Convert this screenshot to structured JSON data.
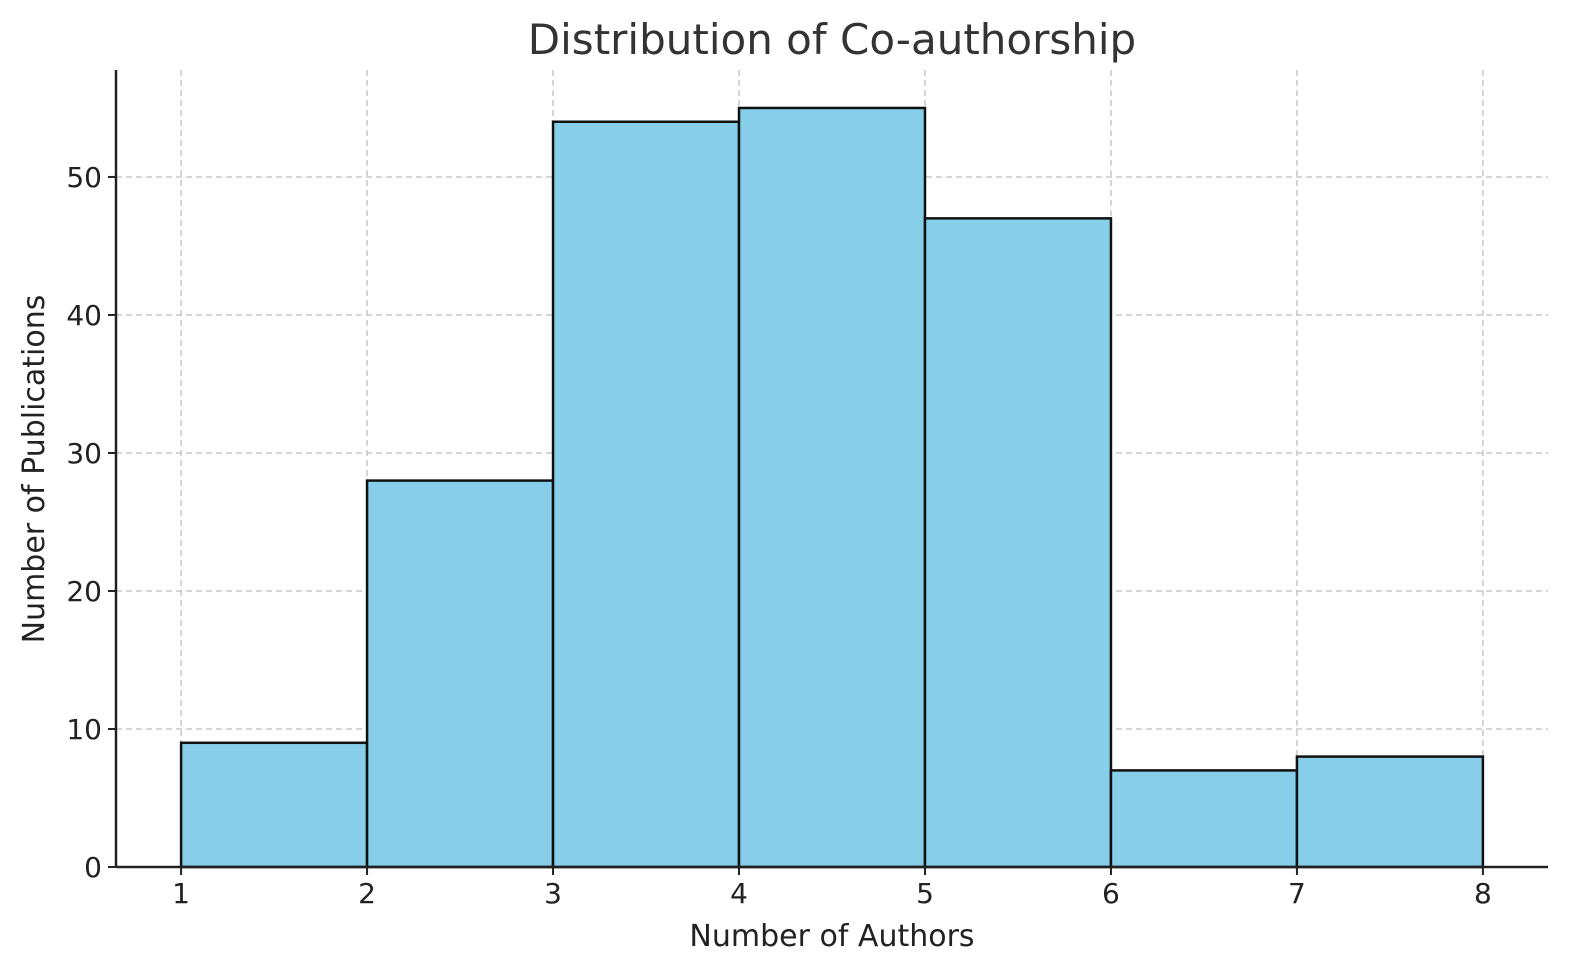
{
  "chart_data": {
    "type": "bar",
    "title": "Distribution of Co-authorship",
    "xlabel": "Number of Authors",
    "ylabel": "Number of Publications",
    "bins": [
      {
        "start": 1,
        "end": 2,
        "value": 9
      },
      {
        "start": 2,
        "end": 3,
        "value": 28
      },
      {
        "start": 3,
        "end": 4,
        "value": 54
      },
      {
        "start": 4,
        "end": 5,
        "value": 55
      },
      {
        "start": 5,
        "end": 6,
        "value": 47
      },
      {
        "start": 6,
        "end": 7,
        "value": 7
      },
      {
        "start": 7,
        "end": 8,
        "value": 8
      }
    ],
    "xticks": [
      "1",
      "2",
      "3",
      "4",
      "5",
      "6",
      "7",
      "8"
    ],
    "yticks": [
      "0",
      "10",
      "20",
      "30",
      "40",
      "50"
    ],
    "xlim": [
      0.65,
      8.35
    ],
    "ylim": [
      0,
      57.75
    ],
    "grid": true,
    "bar_color": "#87CEEB",
    "edge_color": "#111111"
  }
}
